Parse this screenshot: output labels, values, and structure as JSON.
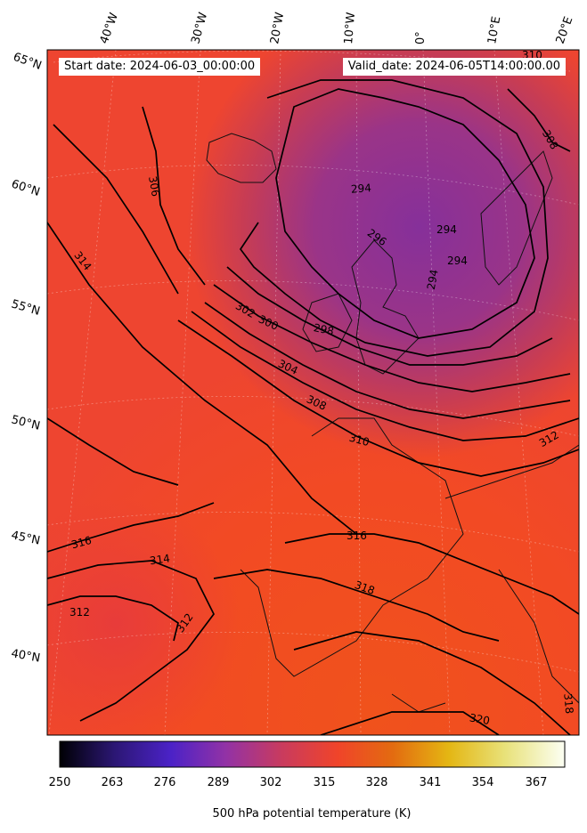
{
  "map": {
    "start_date": "Start date: 2024-06-03_00:00:00",
    "valid_date": "Valid_date: 2024-06-05T14:00:00.00",
    "lon_labels": [
      "40°W",
      "30°W",
      "20°W",
      "10°W",
      "0°",
      "10°E",
      "20°E"
    ],
    "lat_labels": [
      "65°N",
      "60°N",
      "55°N",
      "50°N",
      "45°N",
      "40°N"
    ],
    "contour_labels": [
      "306",
      "314",
      "302",
      "300",
      "304",
      "308",
      "310",
      "298",
      "294",
      "296",
      "294",
      "294",
      "294",
      "308",
      "312",
      "316",
      "314",
      "312",
      "312",
      "316",
      "318",
      "320",
      "318",
      "310"
    ]
  },
  "colorbar": {
    "ticks": [
      "250",
      "263",
      "276",
      "289",
      "302",
      "315",
      "328",
      "341",
      "354",
      "367"
    ],
    "label": "500 hPa potential temperature (K)",
    "colormap": [
      "#000004",
      "#2c1775",
      "#4b22c7",
      "#9332a5",
      "#c93b5e",
      "#f0442a",
      "#e36b10",
      "#e4b613",
      "#e8e178",
      "#fcfff3"
    ]
  }
}
